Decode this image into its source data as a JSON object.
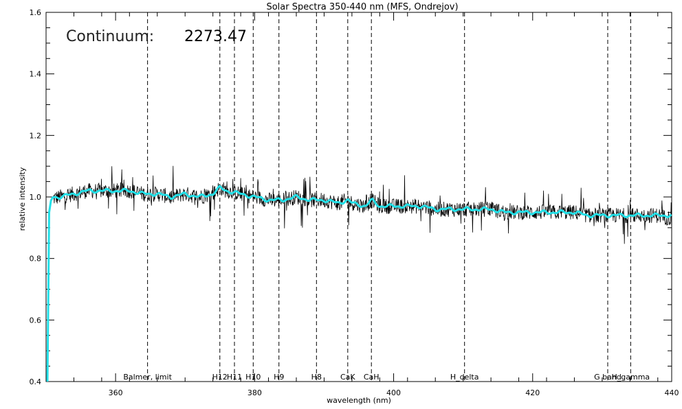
{
  "chart_data": {
    "type": "line",
    "title": "Solar Spectra 350-440 nm (MFS, Ondrejov)",
    "xlabel": "wavelength (nm)",
    "ylabel": "relative intensity",
    "xlim": [
      350,
      440
    ],
    "ylim": [
      0.4,
      1.6
    ],
    "x_ticks": [
      360,
      380,
      400,
      420,
      440
    ],
    "x_tick_labels": [
      "360",
      "380",
      "400",
      "420",
      "440"
    ],
    "y_ticks": [
      0.4,
      0.6,
      0.8,
      1.0,
      1.2,
      1.4,
      1.6
    ],
    "y_tick_labels": [
      "0.4",
      "0.6",
      "0.8",
      "1.0",
      "1.2",
      "1.4",
      "1.6"
    ],
    "grid": false,
    "annotation": {
      "label": "Continuum:",
      "value": "2273.47"
    },
    "spectral_lines": [
      {
        "name": "Balmer, limit",
        "x": 364.6
      },
      {
        "name": "H12",
        "x": 375.0
      },
      {
        "name": "H11",
        "x": 377.1
      },
      {
        "name": "H10",
        "x": 379.8
      },
      {
        "name": "H9",
        "x": 383.5
      },
      {
        "name": "H8",
        "x": 388.9
      },
      {
        "name": "CaK",
        "x": 393.4
      },
      {
        "name": "CaH",
        "x": 396.8
      },
      {
        "name": "H_delta",
        "x": 410.2
      },
      {
        "name": "G band",
        "x": 430.8
      },
      {
        "name": "H_gamma",
        "x": 434.1
      }
    ],
    "series": [
      {
        "color": "#000000",
        "style": "noisy",
        "x": [
          350.0,
          352,
          354,
          356,
          358,
          360,
          362,
          364,
          366,
          368,
          370,
          372,
          374,
          375,
          376,
          378,
          380,
          382,
          384,
          386,
          388,
          390,
          392,
          393.4,
          394,
          396,
          396.8,
          398,
          400,
          402,
          404,
          406,
          408,
          410,
          412,
          414,
          416,
          418,
          420,
          422,
          424,
          426,
          428,
          430,
          432,
          434,
          436,
          438,
          440
        ],
        "values": [
          0.99,
          1.0,
          1.01,
          1.02,
          1.02,
          1.02,
          1.02,
          1.01,
          1.01,
          1.0,
          1.01,
          1.0,
          1.01,
          1.03,
          1.02,
          1.01,
          1.0,
          0.99,
          0.99,
          1.0,
          0.99,
          0.99,
          0.98,
          0.99,
          0.98,
          0.97,
          0.99,
          0.97,
          0.97,
          0.97,
          0.97,
          0.96,
          0.96,
          0.96,
          0.96,
          0.96,
          0.95,
          0.95,
          0.95,
          0.95,
          0.95,
          0.95,
          0.94,
          0.94,
          0.94,
          0.94,
          0.94,
          0.94,
          0.93
        ]
      },
      {
        "color": "#22e0e8",
        "style": "smoothed",
        "x": [
          350.2,
          350.3,
          350.4,
          350.5,
          351,
          352,
          354,
          356,
          358,
          360,
          362,
          364,
          366,
          368,
          370,
          372,
          374,
          375,
          376,
          378,
          380,
          382,
          384,
          386,
          388,
          390,
          392,
          393.4,
          394,
          396,
          396.8,
          398,
          400,
          402,
          404,
          406,
          408,
          410,
          412,
          414,
          416,
          418,
          420,
          422,
          424,
          426,
          428,
          430,
          432,
          434,
          436,
          438,
          440
        ],
        "values": [
          0.4,
          0.7,
          0.92,
          0.98,
          1.0,
          1.0,
          1.01,
          1.02,
          1.02,
          1.02,
          1.02,
          1.01,
          1.01,
          1.0,
          1.01,
          1.0,
          1.01,
          1.03,
          1.02,
          1.01,
          1.0,
          0.99,
          0.99,
          1.0,
          0.99,
          0.99,
          0.98,
          0.99,
          0.98,
          0.97,
          0.99,
          0.97,
          0.97,
          0.97,
          0.97,
          0.96,
          0.96,
          0.96,
          0.96,
          0.96,
          0.95,
          0.95,
          0.95,
          0.95,
          0.95,
          0.95,
          0.94,
          0.94,
          0.94,
          0.94,
          0.94,
          0.94,
          0.94
        ]
      }
    ]
  }
}
